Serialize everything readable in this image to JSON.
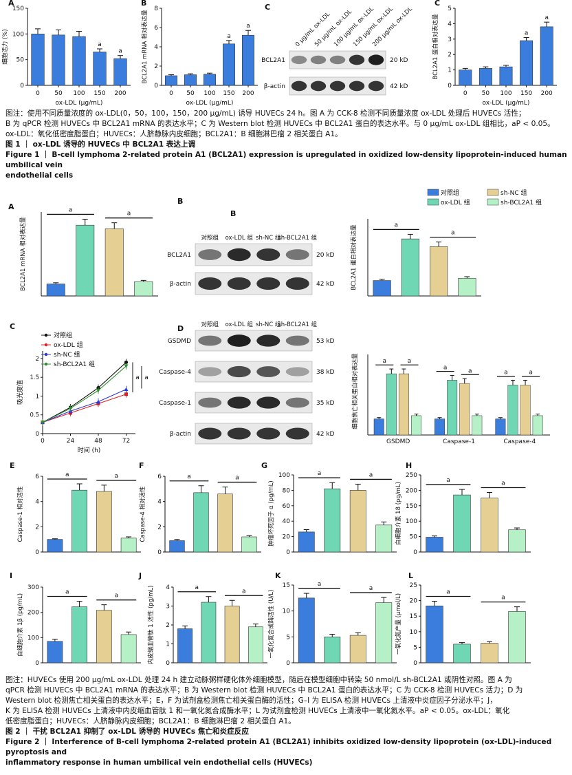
{
  "figure1": {
    "panels": [
      {
        "letter": "A",
        "type": "bar",
        "ylabel": "细胞活力 (%)",
        "xlabel": "ox-LDL (μg/mL)",
        "categories": [
          "0",
          "50",
          "100",
          "150",
          "200"
        ],
        "values": [
          100,
          98,
          95,
          65,
          52
        ],
        "errors": [
          10,
          10,
          10,
          6,
          6
        ],
        "sig": [
          "",
          "",
          "",
          "a",
          "a"
        ],
        "ylim": [
          0,
          150
        ],
        "yticks": [
          0,
          50,
          100,
          150
        ],
        "colors": [
          "#3b7ddd"
        ]
      },
      {
        "letter": "B",
        "type": "bar",
        "ylabel": "BCL2A1 mRNA 相对表达量",
        "xlabel": "ox-LDL (μg/mL)",
        "categories": [
          "0",
          "50",
          "100",
          "150",
          "200"
        ],
        "values": [
          1.0,
          1.1,
          1.15,
          4.3,
          5.2
        ],
        "errors": [
          0.1,
          0.1,
          0.12,
          0.35,
          0.5
        ],
        "sig": [
          "",
          "",
          "",
          "a",
          "a"
        ],
        "ylim": [
          0,
          8
        ],
        "yticks": [
          0,
          2,
          4,
          6,
          8
        ],
        "colors": [
          "#3b7ddd"
        ]
      },
      {
        "letter": "C",
        "type": "bar",
        "ylabel": "BCL2A1 蛋白相对表达量",
        "xlabel": "ox-LDL (μg/mL)",
        "categories": [
          "0",
          "50",
          "100",
          "150",
          "200"
        ],
        "values": [
          1.0,
          1.1,
          1.2,
          2.9,
          3.8
        ],
        "errors": [
          0.1,
          0.1,
          0.1,
          0.2,
          0.3
        ],
        "sig": [
          "",
          "",
          "",
          "a",
          "a"
        ],
        "ylim": [
          0,
          5
        ],
        "yticks": [
          0,
          1,
          2,
          3,
          4,
          5
        ],
        "colors": [
          "#3b7ddd"
        ]
      }
    ],
    "blot": {
      "letter": "C",
      "lanes": [
        "0 μg/mL ox-LDL",
        "50 μg/mL ox-LDL",
        "100 μg/mL ox-LDL",
        "150 μg/mL ox-LDL",
        "200 μg/mL ox-LDL"
      ],
      "rows": [
        {
          "label": "BCL2A1",
          "kd": "20 kD",
          "intensity": [
            0.45,
            0.5,
            0.5,
            0.85,
            0.95
          ]
        },
        {
          "label": "β-actin",
          "kd": "42 kD",
          "intensity": [
            0.85,
            0.85,
            0.85,
            0.85,
            0.85
          ]
        }
      ]
    },
    "note_lines": [
      "图注：使用不同质量浓度的 ox-LDL(0，50，100，150，200 μg/mL) 诱导 HUVECs 24 h。图 A 为 CCK-8 检测不同质量浓度 ox-LDL 处理后 HUVECs 活性；",
      "B 为 qPCR 检测 HUVECs 中 BCL2A1 mRNA 的表达水平；C 为 Western blot 检测 HUVECs 中 BCL2A1 蛋白的表达水平。与 0 μg/mL ox-LDL 组相比，aP < 0.05。",
      "ox-LDL：氧化低密度脂蛋白；HUVECs：人脐静脉内皮细胞；BCL2A1：B 细胞淋巴瘤 2 相关蛋白 A1。"
    ],
    "title_cn": "图 1 ｜ ox-LDL 诱导的 HUVECs 中 BCL2A1 表达上调",
    "title_en_lines": [
      "Figure 1 ｜ B-cell lymphoma 2-related protein A1 (BCL2A1) expression is upregulated in oxidized low-density lipoprotein-induced human umbilical vein",
      "endothelial cells"
    ]
  },
  "figure2": {
    "groups": [
      "对照组",
      "ox-LDL 组",
      "sh-NC 组",
      "sh-BCL2A1 组"
    ],
    "colors": [
      "#3b7ddd",
      "#6fd7b4",
      "#e6cf92",
      "#b6f0c6"
    ],
    "panels": [
      {
        "letter": "A",
        "ylabel": "BCL2A1 mRNA 相对表达量",
        "values": [
          1.0,
          5.9,
          5.6,
          1.2
        ],
        "errors": [
          0.1,
          0.5,
          0.5,
          0.1
        ],
        "ylim": [
          0,
          7
        ],
        "yticks": [],
        "sig": [
          [
            0,
            1
          ],
          [
            2,
            3
          ]
        ]
      },
      {
        "letter": "B",
        "ylabel": "BCL2A1 蛋白相对表达量",
        "values": [
          1.0,
          3.7,
          3.2,
          1.15
        ],
        "errors": [
          0.08,
          0.3,
          0.3,
          0.1
        ],
        "ylim": [
          0,
          5
        ],
        "yticks": [],
        "sig": [
          [
            0,
            1
          ],
          [
            2,
            3
          ]
        ]
      },
      {
        "letter": "E",
        "ylabel": "Caspase-1 相对活性",
        "values": [
          1.0,
          4.9,
          4.8,
          1.1
        ],
        "errors": [
          0.05,
          0.5,
          0.5,
          0.1
        ],
        "ylim": [
          0,
          6
        ],
        "yticks": [
          0,
          2,
          4,
          6
        ],
        "sig": [
          [
            0,
            1
          ],
          [
            2,
            3
          ]
        ]
      },
      {
        "letter": "F",
        "ylabel": "Caspase-4 相对活性",
        "values": [
          0.9,
          4.7,
          4.6,
          1.2
        ],
        "errors": [
          0.1,
          0.55,
          0.55,
          0.1
        ],
        "ylim": [
          0,
          6
        ],
        "yticks": [
          0,
          2,
          4,
          6
        ],
        "sig": [
          [
            0,
            1
          ],
          [
            2,
            3
          ]
        ]
      },
      {
        "letter": "G",
        "ylabel": "肿瘤坏死因子 α (pg/mL)",
        "values": [
          26,
          82,
          80,
          35
        ],
        "errors": [
          3,
          8,
          8,
          4
        ],
        "ylim": [
          0,
          100
        ],
        "yticks": [
          0,
          20,
          40,
          60,
          80,
          100
        ],
        "sig": [
          [
            0,
            1
          ],
          [
            2,
            3
          ]
        ]
      },
      {
        "letter": "H",
        "ylabel": "白细胞介素 18 (pg/mL)",
        "values": [
          48,
          185,
          175,
          72
        ],
        "errors": [
          4,
          18,
          18,
          6
        ],
        "ylim": [
          0,
          250
        ],
        "yticks": [
          0,
          50,
          100,
          150,
          200,
          250
        ],
        "sig": [
          [
            0,
            1
          ],
          [
            2,
            3
          ]
        ]
      },
      {
        "letter": "I",
        "ylabel": "白细胞介素 1β (pg/mL)",
        "values": [
          85,
          222,
          208,
          112
        ],
        "errors": [
          8,
          22,
          22,
          10
        ],
        "ylim": [
          0,
          300
        ],
        "yticks": [
          0,
          100,
          200,
          300
        ],
        "sig": [
          [
            0,
            1
          ],
          [
            2,
            3
          ]
        ]
      },
      {
        "letter": "J",
        "ylabel": "内皮缩血管肽 1 活性 (pg/mL)",
        "values": [
          1.8,
          3.2,
          3.0,
          1.9
        ],
        "errors": [
          0.15,
          0.3,
          0.3,
          0.15
        ],
        "ylim": [
          0,
          4
        ],
        "yticks": [
          0,
          1,
          2,
          3,
          4
        ],
        "sig": [
          [
            0,
            1
          ],
          [
            2,
            3
          ]
        ]
      },
      {
        "letter": "K",
        "ylabel": "一氧化氮合成酶活性 (U/L)",
        "values": [
          12.5,
          5.0,
          5.3,
          11.6
        ],
        "errors": [
          0.9,
          0.5,
          0.5,
          1.0
        ],
        "ylim": [
          0,
          15
        ],
        "yticks": [
          0,
          5,
          10,
          15
        ],
        "sig": [
          [
            0,
            1
          ],
          [
            2,
            3
          ]
        ]
      },
      {
        "letter": "L",
        "ylabel": "一氧化氮产量 (μmol/L)",
        "values": [
          18.3,
          6.0,
          6.3,
          16.5
        ],
        "errors": [
          1.5,
          0.5,
          0.5,
          1.5
        ],
        "ylim": [
          0,
          25
        ],
        "yticks": [
          0,
          5,
          10,
          15,
          20,
          25
        ],
        "sig": [
          [
            0,
            1
          ],
          [
            2,
            3
          ]
        ]
      }
    ],
    "line_panel": {
      "letter": "C",
      "ylabel": "吸光度值",
      "xlabel": "时间 (h)",
      "x": [
        0,
        24,
        48,
        72
      ],
      "xticks": [
        0,
        24,
        48,
        72
      ],
      "yticks": [
        0,
        0.5,
        1.0,
        1.5,
        2.0
      ],
      "ylim": [
        0,
        2.2
      ],
      "series": [
        {
          "name": "对照组",
          "color": "#111111",
          "marker": "circle",
          "values": [
            0.3,
            0.7,
            1.22,
            1.9
          ]
        },
        {
          "name": "ox-LDL 组",
          "color": "#e02020",
          "marker": "square",
          "values": [
            0.3,
            0.55,
            0.8,
            1.05
          ]
        },
        {
          "name": "sh-NC 组",
          "color": "#2a3ad0",
          "marker": "triangle",
          "values": [
            0.3,
            0.6,
            0.85,
            1.18
          ]
        },
        {
          "name": "sh-BCL2A1 组",
          "color": "#2f8f2f",
          "marker": "triangle-down",
          "values": [
            0.3,
            0.67,
            1.15,
            1.8
          ]
        }
      ],
      "sig_labels": [
        "a",
        "a"
      ]
    },
    "pyro_bar": {
      "letter": "D",
      "ylabel": "细胞焦亡相关蛋白相对表达量",
      "categories": [
        "GSDMD",
        "Caspase-1",
        "Caspase-4"
      ],
      "values": [
        [
          1.0,
          3.8,
          3.8,
          1.2
        ],
        [
          1.0,
          3.4,
          3.2,
          1.2
        ],
        [
          1.0,
          3.1,
          3.1,
          1.2
        ]
      ],
      "errors": [
        [
          0.08,
          0.3,
          0.3,
          0.1
        ],
        [
          0.08,
          0.3,
          0.3,
          0.1
        ],
        [
          0.08,
          0.3,
          0.3,
          0.1
        ]
      ],
      "ylim": [
        0,
        5
      ]
    },
    "blot_B": {
      "lanes": [
        "对照组",
        "ox-LDL 组",
        "sh-NC 组",
        "sh-BCL2A1 组"
      ],
      "rows": [
        {
          "label": "BCL2A1",
          "kd": "20 kD",
          "intensity": [
            0.55,
            0.9,
            0.85,
            0.55
          ]
        },
        {
          "label": "β-actin",
          "kd": "42 kD",
          "intensity": [
            0.85,
            0.85,
            0.85,
            0.85
          ]
        }
      ]
    },
    "blot_D": {
      "lanes": [
        "对照组",
        "ox-LDL 组",
        "sh-NC 组",
        "sh-BCL2A1 组"
      ],
      "rows": [
        {
          "label": "GSDMD",
          "kd": "53 kD",
          "intensity": [
            0.55,
            0.95,
            0.9,
            0.55
          ]
        },
        {
          "label": "Caspase-4",
          "kd": "38 kD",
          "intensity": [
            0.35,
            0.75,
            0.7,
            0.35
          ]
        },
        {
          "label": "Caspase-1",
          "kd": "35 kD",
          "intensity": [
            0.55,
            0.9,
            0.9,
            0.55
          ]
        },
        {
          "label": "β-actin",
          "kd": "42 kD",
          "intensity": [
            0.85,
            0.85,
            0.85,
            0.85
          ]
        }
      ]
    },
    "sig_mark": "a",
    "note_lines": [
      "图注：HUVECs 使用 200 μg/mL ox-LDL 处理 24 h 建立动脉粥样硬化体外细胞模型，随后在模型细胞中转染 50 nmol/L sh-BCL2A1 或阴性对照。图 A 为",
      "qPCR 检测 HUVECs 中 BCL2A1 mRNA 的表达水平；B 为 Western blot 检测 HUVECs 中 BCL2A1 蛋白的表达水平；C 为 CCK-8 检测 HUVECs 活力；D 为",
      "Western blot 检测焦亡相关蛋白的表达水平；E，F 为试剂盒检测焦亡相关蛋白酶的活性；G–I 为 ELISA 检测 HUVECs 上清液中炎症因子分泌水平；J，",
      "K 为 ELISA 检测 HUVECs 上清液中内皮缩血管肽 1 和一氧化氮合成酶水平；L 为试剂盒检测 HUVECs 上清液中一氧化氮水平。aP < 0.05。ox-LDL：氧化",
      "低密度脂蛋白；HUVECs：人脐静脉内皮细胞；BCL2A1：B 细胞淋巴瘤 2 相关蛋白 A1。"
    ],
    "title_cn": "图 2 ｜ 干扰 BCL2A1 抑制了 ox-LDL 诱导的 HUVECs 焦亡和炎症反应",
    "title_en_lines": [
      "Figure 2 ｜ Interference of B-cell lymphoma 2-related protein A1 (BCL2A1) inhibits oxidized low-density lipoprotein (ox-LDL)-induced pyroptosis and",
      "inflammatory response in human umbilical vein endothelial cells (HUVECs)"
    ]
  },
  "chart_data": [
    {
      "type": "bar",
      "panel": "Fig1A",
      "categories": [
        "0",
        "50",
        "100",
        "150",
        "200"
      ],
      "values": [
        100,
        98,
        95,
        65,
        52
      ],
      "xlabel": "ox-LDL (μg/mL)",
      "ylabel": "细胞活力 (%)",
      "ylim": [
        0,
        150
      ]
    },
    {
      "type": "bar",
      "panel": "Fig1B",
      "categories": [
        "0",
        "50",
        "100",
        "150",
        "200"
      ],
      "values": [
        1.0,
        1.1,
        1.15,
        4.3,
        5.2
      ],
      "xlabel": "ox-LDL (μg/mL)",
      "ylabel": "BCL2A1 mRNA 相对表达量",
      "ylim": [
        0,
        8
      ]
    },
    {
      "type": "bar",
      "panel": "Fig1C",
      "categories": [
        "0",
        "50",
        "100",
        "150",
        "200"
      ],
      "values": [
        1.0,
        1.1,
        1.2,
        2.9,
        3.8
      ],
      "xlabel": "ox-LDL (μg/mL)",
      "ylabel": "BCL2A1 蛋白相对表达量",
      "ylim": [
        0,
        5
      ]
    },
    {
      "type": "bar",
      "panel": "Fig2A",
      "categories": [
        "对照组",
        "ox-LDL 组",
        "sh-NC 组",
        "sh-BCL2A1 组"
      ],
      "values": [
        1.0,
        5.9,
        5.6,
        1.2
      ]
    },
    {
      "type": "bar",
      "panel": "Fig2B",
      "categories": [
        "对照组",
        "ox-LDL 组",
        "sh-NC 组",
        "sh-BCL2A1 组"
      ],
      "values": [
        1.0,
        3.7,
        3.2,
        1.15
      ]
    },
    {
      "type": "line",
      "panel": "Fig2C",
      "x": [
        0,
        24,
        48,
        72
      ],
      "series": [
        {
          "name": "对照组",
          "values": [
            0.3,
            0.7,
            1.22,
            1.9
          ]
        },
        {
          "name": "ox-LDL 组",
          "values": [
            0.3,
            0.55,
            0.8,
            1.05
          ]
        },
        {
          "name": "sh-NC 组",
          "values": [
            0.3,
            0.6,
            0.85,
            1.18
          ]
        },
        {
          "name": "sh-BCL2A1 组",
          "values": [
            0.3,
            0.67,
            1.15,
            1.8
          ]
        }
      ]
    },
    {
      "type": "bar",
      "panel": "Fig2D",
      "categories": [
        "GSDMD",
        "Caspase-1",
        "Caspase-4"
      ],
      "series": [
        {
          "name": "对照组",
          "values": [
            1.0,
            1.0,
            1.0
          ]
        },
        {
          "name": "ox-LDL 组",
          "values": [
            3.8,
            3.4,
            3.1
          ]
        },
        {
          "name": "sh-NC 组",
          "values": [
            3.8,
            3.2,
            3.1
          ]
        },
        {
          "name": "sh-BCL2A1 组",
          "values": [
            1.2,
            1.2,
            1.2
          ]
        }
      ]
    },
    {
      "type": "bar",
      "panel": "Fig2E",
      "values": [
        1.0,
        4.9,
        4.8,
        1.1
      ],
      "ylim": [
        0,
        6
      ]
    },
    {
      "type": "bar",
      "panel": "Fig2F",
      "values": [
        0.9,
        4.7,
        4.6,
        1.2
      ],
      "ylim": [
        0,
        6
      ]
    },
    {
      "type": "bar",
      "panel": "Fig2G",
      "values": [
        26,
        82,
        80,
        35
      ],
      "ylim": [
        0,
        100
      ]
    },
    {
      "type": "bar",
      "panel": "Fig2H",
      "values": [
        48,
        185,
        175,
        72
      ],
      "ylim": [
        0,
        250
      ]
    },
    {
      "type": "bar",
      "panel": "Fig2I",
      "values": [
        85,
        222,
        208,
        112
      ],
      "ylim": [
        0,
        300
      ]
    },
    {
      "type": "bar",
      "panel": "Fig2J",
      "values": [
        1.8,
        3.2,
        3.0,
        1.9
      ],
      "ylim": [
        0,
        4
      ]
    },
    {
      "type": "bar",
      "panel": "Fig2K",
      "values": [
        12.5,
        5.0,
        5.3,
        11.6
      ],
      "ylim": [
        0,
        15
      ]
    },
    {
      "type": "bar",
      "panel": "Fig2L",
      "values": [
        18.3,
        6.0,
        6.3,
        16.5
      ],
      "ylim": [
        0,
        25
      ]
    }
  ]
}
